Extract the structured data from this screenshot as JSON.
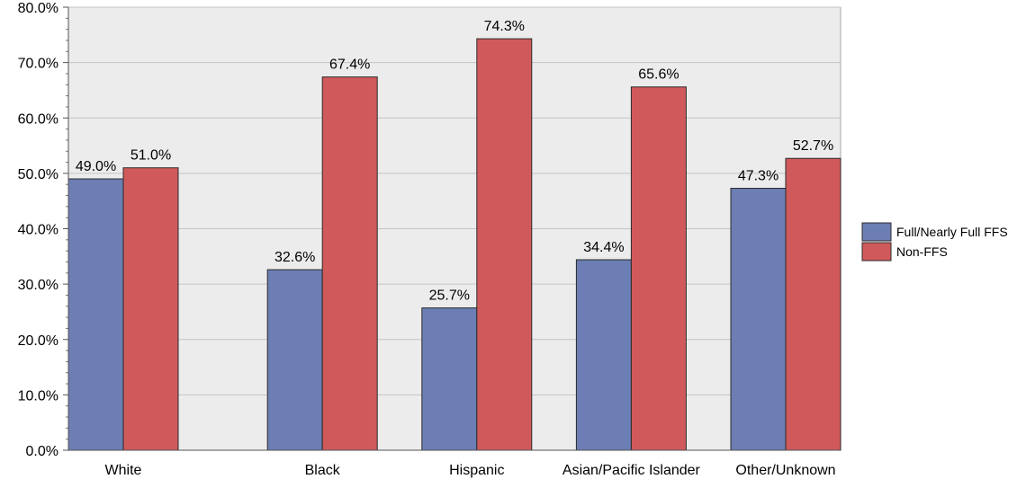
{
  "chart_data": {
    "type": "bar",
    "categories": [
      "White",
      "Black",
      "Hispanic",
      "Asian/Pacific Islander",
      "Other/Unknown"
    ],
    "series": [
      {
        "name": "Full/Nearly Full FFS",
        "values": [
          49.0,
          32.6,
          25.7,
          34.4,
          47.3
        ],
        "color": "#6c7eb3",
        "value_labels": [
          "49.0%",
          "32.6%",
          "25.7%",
          "34.4%",
          "47.3%"
        ]
      },
      {
        "name": "Non-FFS",
        "values": [
          51.0,
          67.4,
          74.3,
          65.6,
          52.7
        ],
        "color": "#d05a5b",
        "value_labels": [
          "51.0%",
          "67.4%",
          "74.3%",
          "65.6%",
          "52.7%"
        ]
      }
    ],
    "ylim": [
      0,
      80
    ],
    "yticks": [
      0,
      10,
      20,
      30,
      40,
      50,
      60,
      70,
      80
    ],
    "ytick_labels": [
      "0.0%",
      "10.0%",
      "20.0%",
      "30.0%",
      "40.0%",
      "50.0%",
      "60.0%",
      "70.0%",
      "80.0%"
    ],
    "grid": true,
    "legend_position": "right",
    "plot_background": "#ececec"
  }
}
